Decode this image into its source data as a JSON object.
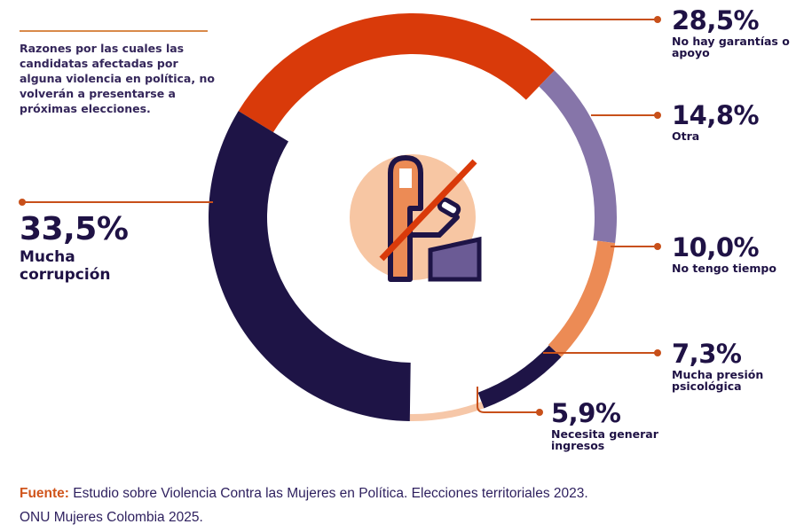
{
  "intro": "Razones por las cuales las candidatas afectadas por alguna violencia en política, no volverán a presentarse a próximas elecciones.",
  "chart_data": {
    "type": "pie",
    "variant": "donut",
    "title": "Razones por las cuales las candidatas afectadas por alguna violencia en política, no volverán a presentarse a próximas elecciones.",
    "unit": "%",
    "slices": [
      {
        "label": "No hay garantías o apoyo",
        "value": 28.5,
        "display": "28,5%",
        "color": "#d93a0a"
      },
      {
        "label": "Otra",
        "value": 14.8,
        "display": "14,8%",
        "color": "#8675a9"
      },
      {
        "label": "No tengo tiempo",
        "value": 10.0,
        "display": "10,0%",
        "color": "#ec8b55"
      },
      {
        "label": "Mucha presión psicológica",
        "value": 7.3,
        "display": "7,3%",
        "color": "#1e1446"
      },
      {
        "label": "Necesita generar ingresos",
        "value": 5.9,
        "display": "5,9%",
        "color": "#f6c7a8"
      },
      {
        "label": "Mucha corrupción",
        "value": 33.5,
        "display": "33,5%",
        "color": "#1e1446"
      }
    ]
  },
  "center_icon": "woman-at-podium-crossed-out-icon",
  "colors": {
    "leader": "#c8501a",
    "center_circle": "#f7c6a3",
    "dark": "#1e1446"
  },
  "footer": {
    "source_label": "Fuente:",
    "source_text": " Estudio sobre Violencia Contra las Mujeres en Política. Elecciones territoriales 2023.",
    "line2": "ONU Mujeres Colombia 2025."
  }
}
